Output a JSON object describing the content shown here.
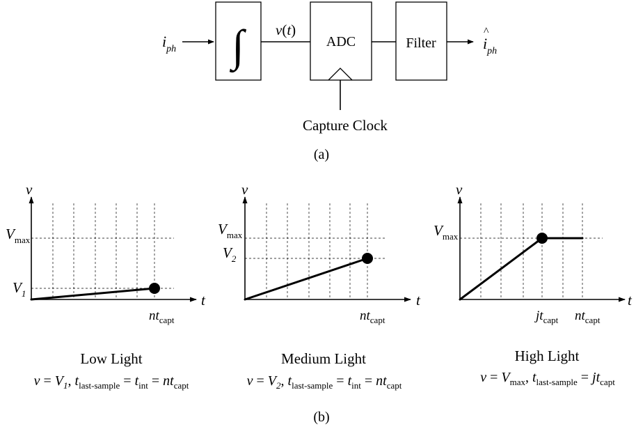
{
  "panel_a": {
    "input_label": "i",
    "input_sub": "ph",
    "integrator_symbol": "∫",
    "signal_v": "v",
    "signal_paren_open": "(",
    "signal_t": "t",
    "signal_paren_close": ")",
    "adc_label": "ADC",
    "filter_label": "Filter",
    "output_hat": "^",
    "output_label": "i",
    "output_sub": "ph",
    "clock_label": "Capture Clock",
    "caption": "(a)"
  },
  "panel_b": {
    "caption": "(b)",
    "low": {
      "v_axis": "v",
      "t_axis": "t",
      "vmax_main": "V",
      "vmax_sub": "max",
      "v1_main": "V",
      "v1_sub": "1",
      "x_main": "nt",
      "x_sub": "capt",
      "title": "Low Light",
      "eq": {
        "a": "v",
        "b": " = ",
        "c": "V",
        "c_sub": "1",
        "d": ", ",
        "e": "t",
        "e_sub": "last-sample",
        "f": " = ",
        "g": "t",
        "g_sub": "int",
        "h": " = ",
        "i": "nt",
        "i_sub": "capt"
      }
    },
    "medium": {
      "v_axis": "v",
      "t_axis": "t",
      "vmax_main": "V",
      "vmax_sub": "max",
      "v2_main": "V",
      "v2_sub": "2",
      "x_main": "nt",
      "x_sub": "capt",
      "title": "Medium Light",
      "eq": {
        "a": "v",
        "b": " = ",
        "c": "V",
        "c_sub": "2",
        "d": ", ",
        "e": "t",
        "e_sub": "last-sample",
        "f": " = ",
        "g": "t",
        "g_sub": "int",
        "h": " = ",
        "i": "nt",
        "i_sub": "capt"
      }
    },
    "high": {
      "v_axis": "v",
      "t_axis": "t",
      "vmax_main": "V",
      "vmax_sub": "max",
      "xj_main": "jt",
      "xj_sub": "capt",
      "xn_main": "nt",
      "xn_sub": "capt",
      "title": "High Light",
      "eq": {
        "a": "v",
        "b": " = ",
        "c": "V",
        "c_sub": "max",
        "d": ", ",
        "e": "t",
        "e_sub": "last-sample",
        "f": " = ",
        "g": "jt",
        "g_sub": "capt"
      }
    }
  },
  "colors": {
    "ink": "#000000",
    "background": "#ffffff"
  }
}
